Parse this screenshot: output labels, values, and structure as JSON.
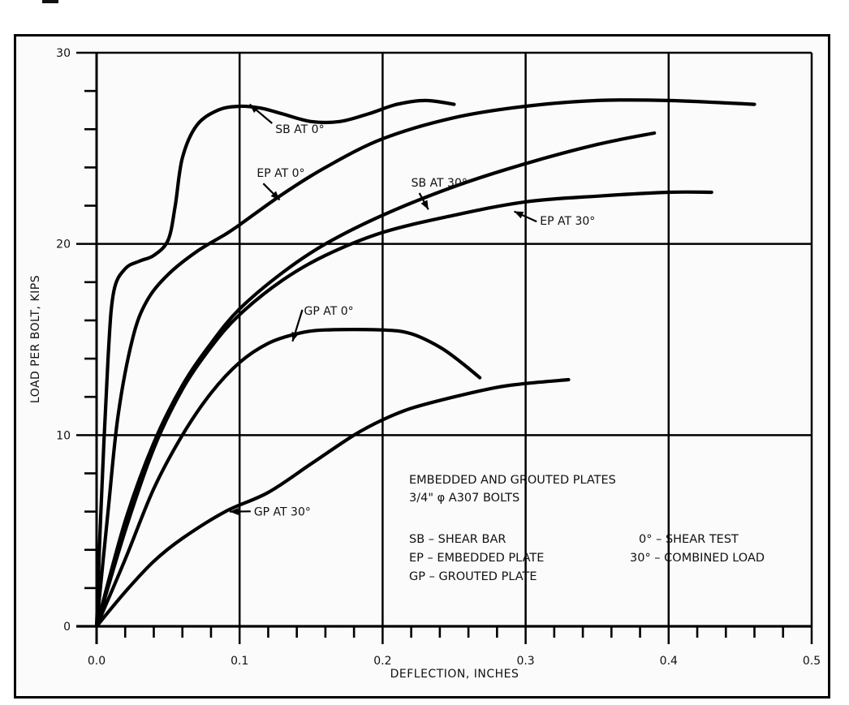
{
  "chart_data": {
    "type": "line",
    "title": "",
    "xlabel": "DEFLECTION, INCHES",
    "ylabel": "LOAD PER BOLT, KIPS",
    "xlim": [
      0.0,
      0.5
    ],
    "ylim": [
      0,
      30
    ],
    "x_ticks": [
      "0.0",
      "0.1",
      "0.2",
      "0.3",
      "0.4",
      "0.5"
    ],
    "y_ticks": [
      "0",
      "10",
      "20",
      "30"
    ],
    "x_minor_step": 0.02,
    "y_minor_step": 2,
    "grid": true,
    "series": [
      {
        "name": "SB AT 0°",
        "x": [
          0,
          0.003,
          0.008,
          0.012,
          0.02,
          0.03,
          0.04,
          0.05,
          0.055,
          0.06,
          0.07,
          0.085,
          0.1,
          0.115,
          0.13,
          0.15,
          0.17,
          0.19,
          0.21,
          0.23,
          0.25
        ],
        "y": [
          0,
          6,
          14,
          17.5,
          18.7,
          19.1,
          19.4,
          20.2,
          22,
          24.5,
          26.2,
          27,
          27.2,
          27.1,
          26.8,
          26.4,
          26.4,
          26.8,
          27.3,
          27.5,
          27.3
        ]
      },
      {
        "name": "EP AT 0°",
        "x": [
          0,
          0.008,
          0.015,
          0.025,
          0.035,
          0.05,
          0.07,
          0.09,
          0.1,
          0.13,
          0.16,
          0.2,
          0.25,
          0.3,
          0.35,
          0.4,
          0.46
        ],
        "y": [
          0,
          6,
          11,
          15,
          17,
          18.4,
          19.6,
          20.5,
          21,
          22.6,
          24,
          25.5,
          26.6,
          27.2,
          27.5,
          27.5,
          27.3
        ]
      },
      {
        "name": "SB AT 30°",
        "x": [
          0,
          0.02,
          0.04,
          0.06,
          0.08,
          0.1,
          0.13,
          0.16,
          0.2,
          0.25,
          0.3,
          0.35,
          0.39
        ],
        "y": [
          0,
          5.5,
          9.6,
          12.6,
          14.8,
          16.6,
          18.5,
          20,
          21.5,
          23,
          24.2,
          25.2,
          25.8
        ]
      },
      {
        "name": "EP AT 30°",
        "x": [
          0,
          0.02,
          0.04,
          0.06,
          0.08,
          0.1,
          0.13,
          0.16,
          0.2,
          0.25,
          0.3,
          0.35,
          0.4,
          0.43
        ],
        "y": [
          0,
          5,
          9.3,
          12.4,
          14.6,
          16.3,
          18.1,
          19.4,
          20.6,
          21.5,
          22.2,
          22.5,
          22.7,
          22.7
        ]
      },
      {
        "name": "GP AT 0°",
        "x": [
          0,
          0.02,
          0.04,
          0.06,
          0.08,
          0.1,
          0.12,
          0.14,
          0.16,
          0.2,
          0.22,
          0.24,
          0.255,
          0.268
        ],
        "y": [
          0,
          3.5,
          7.2,
          10,
          12.2,
          13.8,
          14.8,
          15.3,
          15.5,
          15.5,
          15.3,
          14.6,
          13.8,
          13.0
        ]
      },
      {
        "name": "GP AT 30°",
        "x": [
          0,
          0.02,
          0.04,
          0.06,
          0.09,
          0.12,
          0.15,
          0.18,
          0.2,
          0.22,
          0.25,
          0.28,
          0.3,
          0.33
        ],
        "y": [
          0,
          1.8,
          3.4,
          4.6,
          6.0,
          7.0,
          8.5,
          10.0,
          10.8,
          11.4,
          12.0,
          12.5,
          12.7,
          12.9
        ]
      }
    ],
    "annotations": [
      {
        "text": "SB AT 0°",
        "x": 0.125,
        "y": 25.8,
        "arrow_to": [
          0.107,
          27.3
        ]
      },
      {
        "text": "EP AT 0°",
        "x": 0.112,
        "y": 23.5,
        "arrow_to": [
          0.128,
          22.3
        ]
      },
      {
        "text": "SB AT 30°",
        "x": 0.22,
        "y": 23.0,
        "arrow_to": [
          0.232,
          21.8
        ]
      },
      {
        "text": "EP AT 30°",
        "x": 0.31,
        "y": 21.0,
        "arrow_to": [
          0.292,
          21.7
        ]
      },
      {
        "text": "GP AT 0°",
        "x": 0.145,
        "y": 16.3,
        "arrow_to": [
          0.137,
          14.9
        ]
      },
      {
        "text": "GP AT 30°",
        "x": 0.11,
        "y": 5.8,
        "arrow_to": [
          0.093,
          6.0
        ]
      }
    ],
    "legend": {
      "title_lines": [
        "EMBEDDED AND GROUTED PLATES",
        "3/4\" φ A307 BOLTS"
      ],
      "left_items": [
        "SB – SHEAR BAR",
        "EP – EMBEDDED PLATE",
        "GP – GROUTED PLATE"
      ],
      "right_items": [
        "0° – SHEAR TEST",
        "30° – COMBINED LOAD"
      ],
      "position": "lower-right"
    }
  }
}
